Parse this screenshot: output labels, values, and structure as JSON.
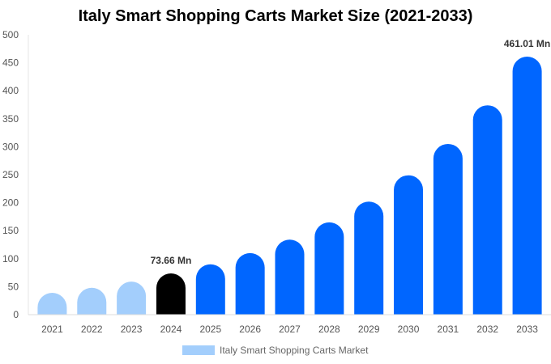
{
  "chart_data": {
    "type": "bar",
    "title": "Italy Smart Shopping Carts Market Size (2021-2033)",
    "categories": [
      "2021",
      "2022",
      "2023",
      "2024",
      "2025",
      "2026",
      "2027",
      "2028",
      "2029",
      "2030",
      "2031",
      "2032",
      "2033"
    ],
    "series": [
      {
        "name": "Italy Smart Shopping Carts Market",
        "values": [
          39,
          48,
          59,
          73.66,
          90,
          110,
          134,
          165,
          202,
          249,
          305,
          374,
          461.01
        ]
      }
    ],
    "data_labels": {
      "2024": "73.66 Mn",
      "2033": "461.01 Mn"
    },
    "ylim": [
      0,
      500
    ],
    "yticks": [
      0,
      50,
      100,
      150,
      200,
      250,
      300,
      350,
      400,
      450,
      500
    ],
    "grid": false,
    "legend_position": "bottom",
    "colors": {
      "historical": "#a3cefc",
      "base_year": "#000000",
      "forecast": "#0066ff"
    }
  }
}
